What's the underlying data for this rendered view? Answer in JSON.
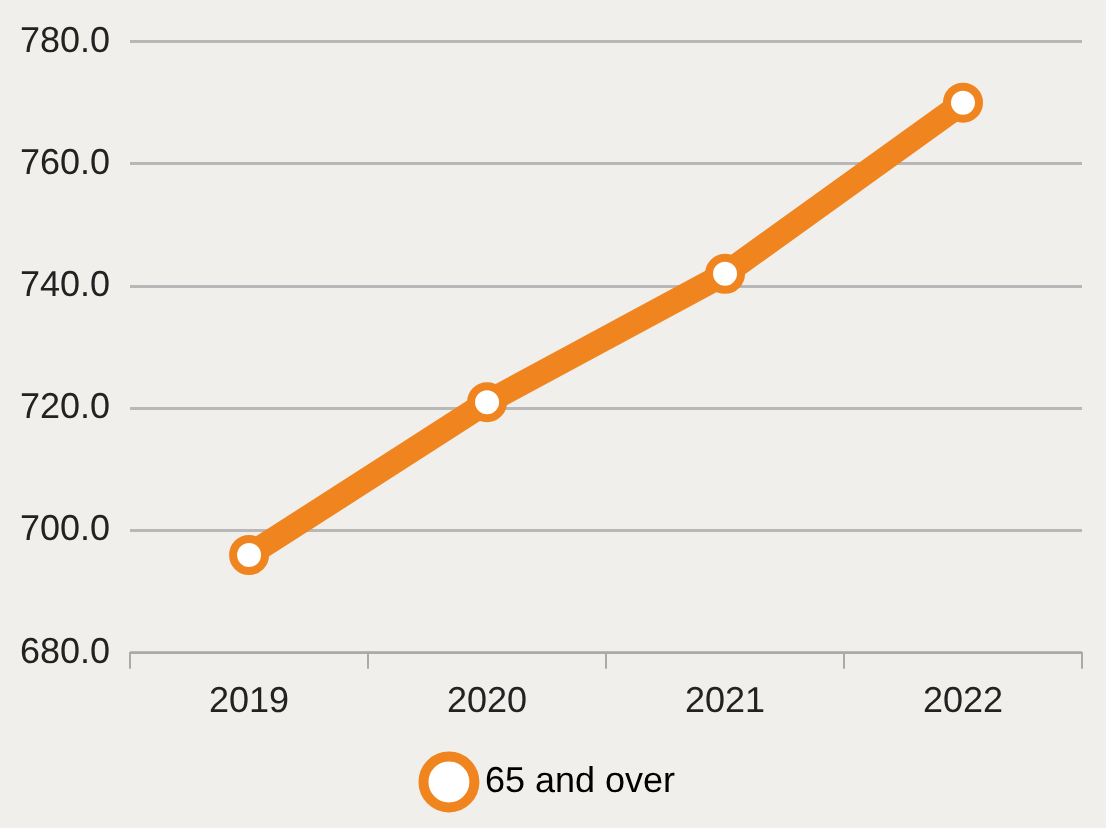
{
  "chart_data": {
    "type": "line",
    "categories": [
      "2019",
      "2020",
      "2021",
      "2022"
    ],
    "series": [
      {
        "name": "65 and over",
        "color": "#f0841e",
        "values": [
          696,
          721,
          742,
          770
        ]
      }
    ],
    "ylim": [
      680,
      780
    ],
    "yticks": [
      {
        "value": 680,
        "label": "680.0"
      },
      {
        "value": 700,
        "label": "700.0"
      },
      {
        "value": 720,
        "label": "720.0"
      },
      {
        "value": 740,
        "label": "740.0"
      },
      {
        "value": 760,
        "label": "760.0"
      },
      {
        "value": 780,
        "label": "780.0"
      }
    ],
    "grid": "y",
    "legend": "bottom",
    "marker": "circle",
    "line_style": "solid"
  }
}
